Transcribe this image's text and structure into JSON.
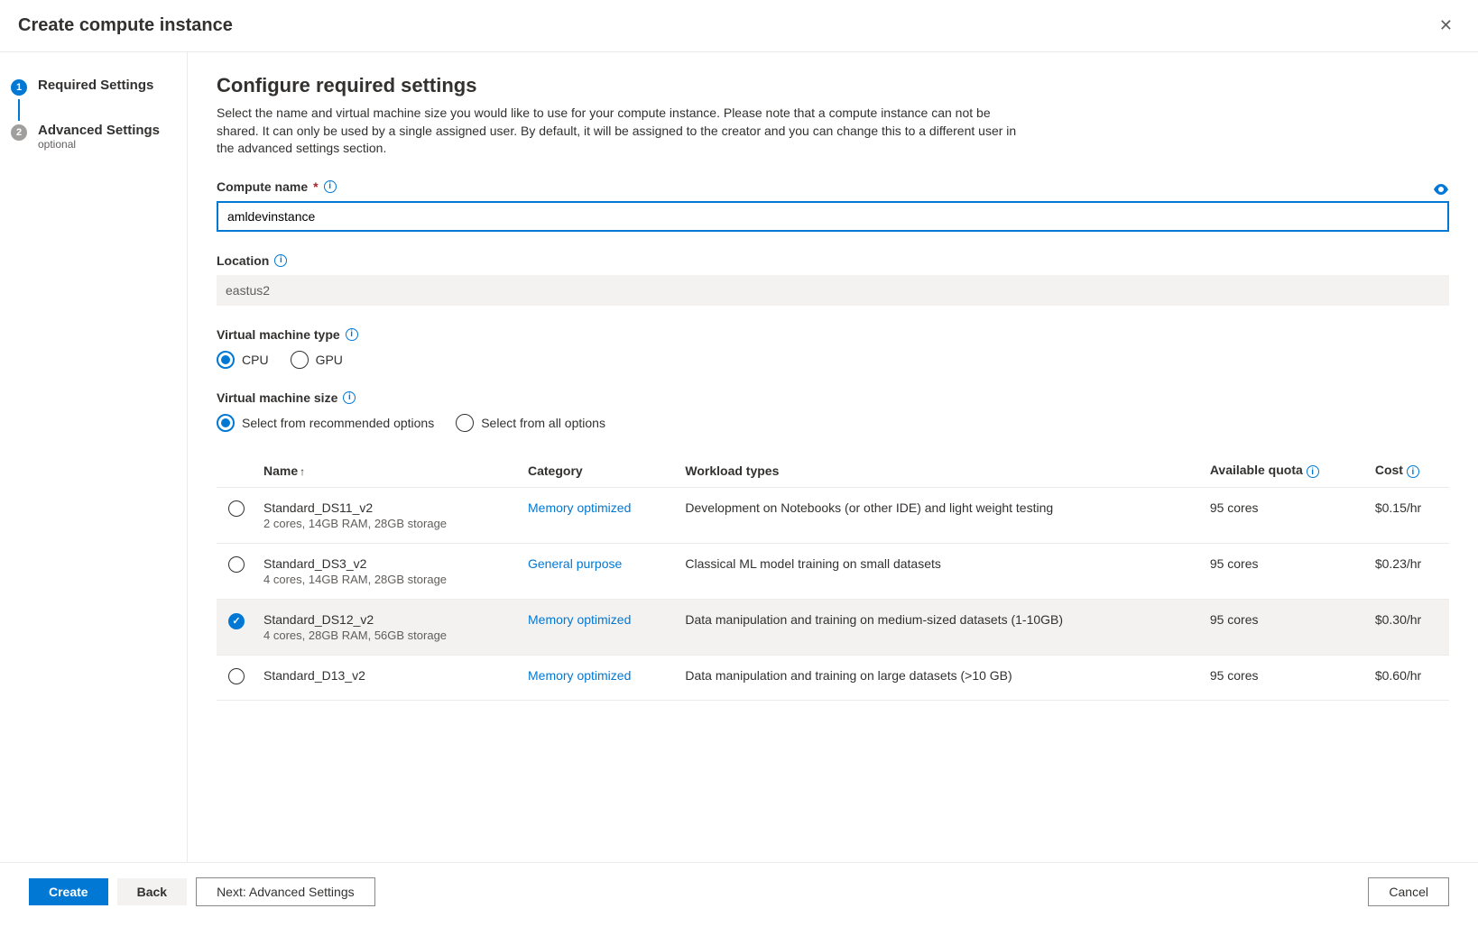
{
  "dialog": {
    "title": "Create compute instance"
  },
  "steps": {
    "s1": {
      "num": "1",
      "label": "Required Settings"
    },
    "s2": {
      "num": "2",
      "label": "Advanced Settings",
      "sub": "optional"
    }
  },
  "main": {
    "heading": "Configure required settings",
    "description": "Select the name and virtual machine size you would like to use for your compute instance. Please note that a compute instance can not be shared. It can only be used by a single assigned user. By default, it will be assigned to the creator and you can change this to a different user in the advanced settings section.",
    "compute_name_label": "Compute name",
    "compute_name_value": "amldevinstance",
    "location_label": "Location",
    "location_value": "eastus2",
    "vm_type_label": "Virtual machine type",
    "vm_type_cpu": "CPU",
    "vm_type_gpu": "GPU",
    "vm_size_label": "Virtual machine size",
    "vm_size_rec": "Select from recommended options",
    "vm_size_all": "Select from all options"
  },
  "table": {
    "headers": {
      "name": "Name",
      "category": "Category",
      "workload": "Workload types",
      "quota": "Available quota",
      "cost": "Cost"
    },
    "rows": [
      {
        "name": "Standard_DS11_v2",
        "specs": "2 cores, 14GB RAM, 28GB storage",
        "category": "Memory optimized",
        "workload": "Development on Notebooks (or other IDE) and light weight testing",
        "quota": "95 cores",
        "cost": "$0.15/hr",
        "selected": false
      },
      {
        "name": "Standard_DS3_v2",
        "specs": "4 cores, 14GB RAM, 28GB storage",
        "category": "General purpose",
        "workload": "Classical ML model training on small datasets",
        "quota": "95 cores",
        "cost": "$0.23/hr",
        "selected": false
      },
      {
        "name": "Standard_DS12_v2",
        "specs": "4 cores, 28GB RAM, 56GB storage",
        "category": "Memory optimized",
        "workload": "Data manipulation and training on medium-sized datasets (1-10GB)",
        "quota": "95 cores",
        "cost": "$0.30/hr",
        "selected": true
      },
      {
        "name": "Standard_D13_v2",
        "specs": "",
        "category": "Memory optimized",
        "workload": "Data manipulation and training on large datasets (>10 GB)",
        "quota": "95 cores",
        "cost": "$0.60/hr",
        "selected": false
      }
    ]
  },
  "footer": {
    "create": "Create",
    "back": "Back",
    "next": "Next: Advanced Settings",
    "cancel": "Cancel"
  }
}
